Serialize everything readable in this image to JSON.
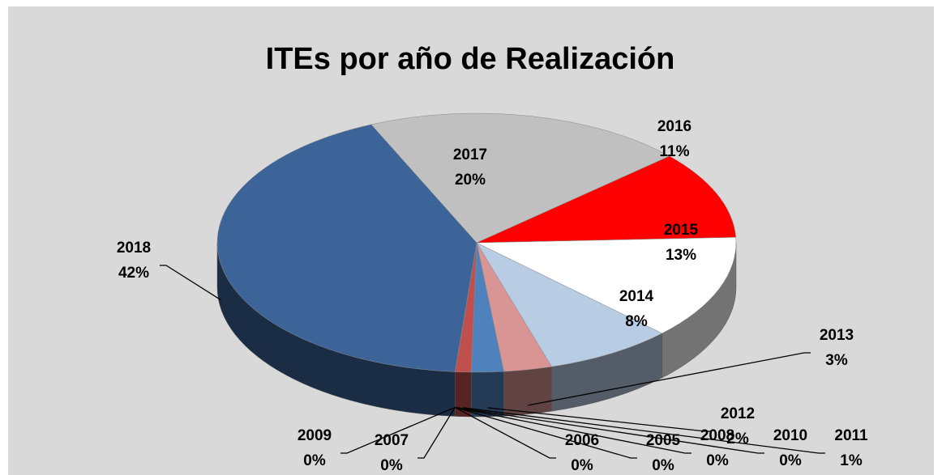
{
  "chart_data": {
    "type": "pie",
    "title": "ITEs por año de Realización",
    "categories": [
      "2017",
      "2016",
      "2015",
      "2014",
      "2013",
      "2012",
      "2011",
      "2010",
      "2008",
      "2005",
      "2006",
      "2007",
      "2009",
      "2018"
    ],
    "values": [
      20,
      11,
      13,
      8,
      3,
      2,
      1,
      0,
      0,
      0,
      0,
      0,
      0,
      42
    ],
    "value_labels": [
      "20%",
      "11%",
      "13%",
      "8%",
      "3%",
      "2%",
      "1%",
      "0%",
      "0%",
      "0%",
      "0%",
      "0%",
      "0%",
      "42%"
    ],
    "colors": [
      "#c0c0c0",
      "#ff0000",
      "#ffffff",
      "#b8cce4",
      "#d99594",
      "#4f81bd",
      "#c0504d",
      "#9bbb59",
      "#8064a2",
      "#4bacc6",
      "#f79646",
      "#ffff99",
      "#c3d69b",
      "#3d6499"
    ]
  }
}
